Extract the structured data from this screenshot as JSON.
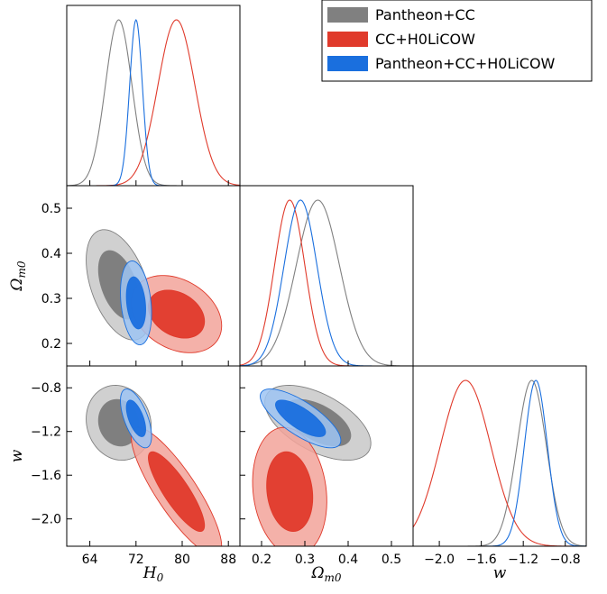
{
  "chart_data": {
    "type": "triangle-corner-plot",
    "parameters": [
      "H0",
      "Omega_m0",
      "w"
    ],
    "labels": {
      "H0": "H₀",
      "Omega_m0": "Ωm0",
      "w": "w"
    },
    "ranges": {
      "H0": [
        60,
        90
      ],
      "Omega_m0": [
        0.15,
        0.55
      ],
      "w": [
        -2.25,
        -0.6
      ]
    },
    "ticks": {
      "H0": [
        64,
        72,
        80,
        88
      ],
      "Omega_m0": [
        0.2,
        0.3,
        0.4,
        0.5
      ],
      "w": [
        -2.0,
        -1.6,
        -1.2,
        -0.8
      ]
    },
    "tick_labels": {
      "H0": [
        "64",
        "72",
        "80",
        "88"
      ],
      "Omega_m0": [
        "0.2",
        "0.3",
        "0.4",
        "0.5"
      ],
      "Omega_m0_y": [
        "0.2",
        "0.3",
        "0.4",
        "0.5"
      ],
      "w": [
        "−2.0",
        "−1.6",
        "−1.2",
        "−0.8"
      ],
      "w_y": [
        "−2.0",
        "−1.6",
        "−1.2",
        "−0.8"
      ]
    },
    "grid": false,
    "legend_position": "top-right",
    "series": [
      {
        "name": "Pantheon+CC",
        "color": "#808080",
        "fill_inner": "#7a7a7a",
        "fill_outer": "#c8c8c8",
        "mean": {
          "H0": 69.0,
          "Omega_m0": 0.33,
          "w": -1.12
        },
        "sigma": {
          "H0": 2.3,
          "Omega_m0": 0.05,
          "w": 0.14
        },
        "corr": {
          "H0_Omega_m0": -0.45,
          "H0_w": -0.1,
          "Omega_m0_w": -0.55
        },
        "curve_offsets": {
          "Omega_m0_w": 0.03
        }
      },
      {
        "name": "CC+H0LiCOW",
        "color": "#e03a2b",
        "fill_inner": "#e03a2b",
        "fill_outer": "#f2a39a",
        "mean": {
          "H0": 79.0,
          "Omega_m0": 0.265,
          "w": -1.75
        },
        "sigma": {
          "H0": 3.2,
          "Omega_m0": 0.035,
          "w": 0.24
        },
        "corr": {
          "H0_Omega_m0": -0.3,
          "H0_w": -0.85,
          "Omega_m0_w": -0.15
        },
        "curve_offsets": {
          "Omega_m0_w": 0.0
        }
      },
      {
        "name": "Pantheon+CC+H0LiCOW",
        "color": "#1a6fde",
        "fill_inner": "#1a6fde",
        "fill_outer": "#9ec4f3",
        "mean": {
          "H0": 72.0,
          "Omega_m0": 0.29,
          "w": -1.08
        },
        "sigma": {
          "H0": 1.1,
          "Omega_m0": 0.038,
          "w": 0.11
        },
        "corr": {
          "H0_Omega_m0": -0.25,
          "H0_w": -0.6,
          "Omega_m0_w": -0.75
        },
        "curve_offsets": {
          "Omega_m0_w": 0.0
        }
      }
    ]
  }
}
